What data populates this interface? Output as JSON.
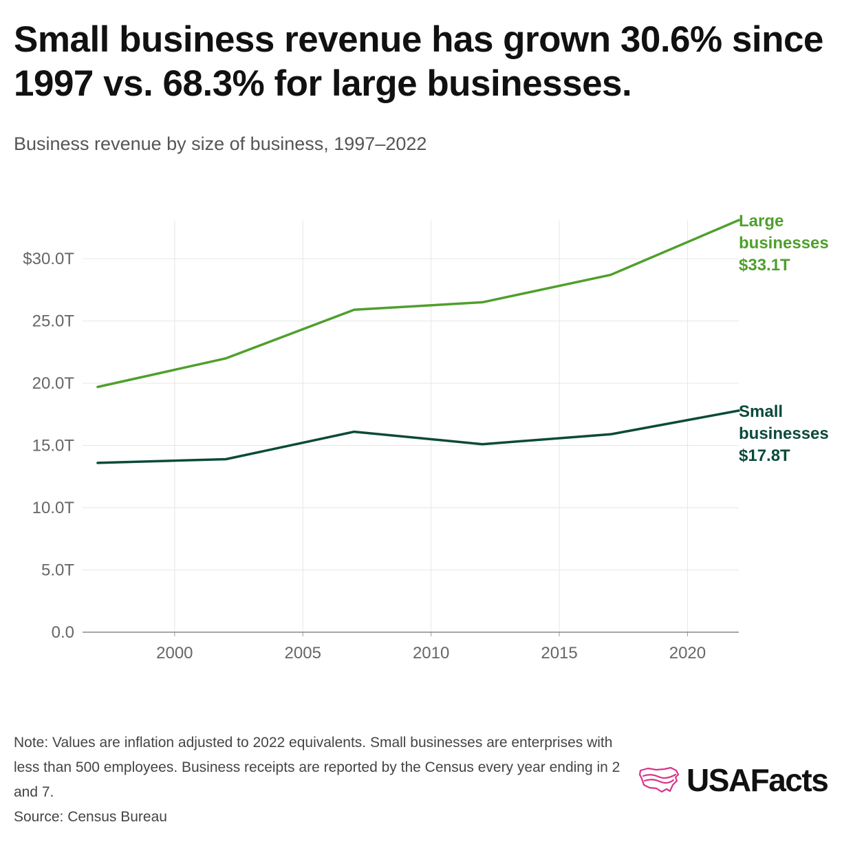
{
  "title": "Small business revenue has grown 30.6% since 1997 vs. 68.3% for large businesses.",
  "subtitle": "Business revenue by size of business, 1997–2022",
  "note": "Note: Values are inflation adjusted to 2022 equivalents. Small businesses are enterprises with less than 500 employees. Business receipts are reported by the Census every year ending in 2 and 7.",
  "source": "Source: Census Bureau",
  "logo": {
    "text": "USAFacts",
    "icon": "usa-map-outline-icon",
    "color": "#d6338a"
  },
  "chart_data": {
    "type": "line",
    "title": "Small business revenue has grown 30.6% since 1997 vs. 68.3% for large businesses.",
    "subtitle": "Business revenue by size of business, 1997–2022",
    "xlabel": "",
    "ylabel": "",
    "x": [
      1997,
      2002,
      2007,
      2012,
      2017,
      2022
    ],
    "xlim": [
      1997,
      2022
    ],
    "ylim": [
      0,
      33.1
    ],
    "x_ticks": [
      2000,
      2005,
      2010,
      2015,
      2020
    ],
    "y_ticks": [
      {
        "value": 0,
        "label": "0.0"
      },
      {
        "value": 5,
        "label": "5.0T"
      },
      {
        "value": 10,
        "label": "10.0T"
      },
      {
        "value": 15,
        "label": "15.0T"
      },
      {
        "value": 20,
        "label": "20.0T"
      },
      {
        "value": 25,
        "label": "25.0T"
      },
      {
        "value": 30,
        "label": "$30.0T"
      }
    ],
    "grid": true,
    "series": [
      {
        "name": "Large businesses",
        "end_label": [
          "Large",
          "businesses",
          "$33.1T"
        ],
        "color": "#4f9f2c",
        "values": [
          19.7,
          22.0,
          25.9,
          26.5,
          28.7,
          33.1
        ]
      },
      {
        "name": "Small businesses",
        "end_label": [
          "Small",
          "businesses",
          "$17.8T"
        ],
        "color": "#0b4a3a",
        "values": [
          13.6,
          13.9,
          16.1,
          15.1,
          15.9,
          17.8
        ]
      }
    ]
  }
}
